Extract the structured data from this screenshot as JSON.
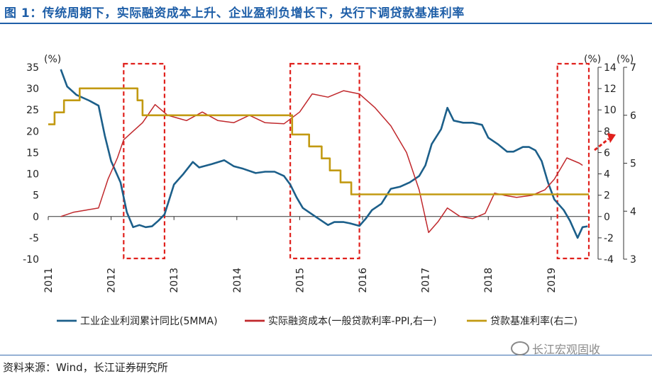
{
  "title": "图 1：传统周期下，实际融资成本上升、企业盈利负增长下，央行下调贷款基准利率",
  "source": "资料来源：Wind，长江证券研究所",
  "watermark": "长江宏观固收",
  "colors": {
    "profit": "#1c5f8a",
    "cost": "#c0282c",
    "rate": "#c29a12",
    "highlight": "#e0201c",
    "accent": "#1f5fa8"
  },
  "chart_data": {
    "type": "line",
    "unit_left": "(%)",
    "unit_right1": "(%)",
    "unit_right2": "(%)",
    "xlim": [
      2011,
      2019.6
    ],
    "x_ticks": [
      "2011",
      "2012",
      "2013",
      "2014",
      "2015",
      "2016",
      "2017",
      "2018",
      "2019"
    ],
    "y_left": {
      "ylim": [
        -10,
        35
      ],
      "ticks": [
        "35",
        "30",
        "25",
        "20",
        "15",
        "10",
        "5",
        "0",
        "-5",
        "-10"
      ]
    },
    "y_right1": {
      "ylim": [
        -4,
        14
      ],
      "ticks": [
        "14",
        "12",
        "10",
        "8",
        "6",
        "4",
        "2",
        "0",
        "-2",
        "-4"
      ]
    },
    "y_right2": {
      "ylim": [
        3,
        7
      ],
      "ticks": [
        "7",
        "6",
        "5",
        "4",
        "3"
      ]
    },
    "series": [
      {
        "name": "工业企业利润累计同比(5MMA)",
        "axis": "left",
        "points": [
          [
            2011.2,
            34.5
          ],
          [
            2011.3,
            30.5
          ],
          [
            2011.45,
            28.5
          ],
          [
            2011.65,
            27.2
          ],
          [
            2011.8,
            26
          ],
          [
            2011.9,
            19
          ],
          [
            2012.0,
            13
          ],
          [
            2012.15,
            8
          ],
          [
            2012.25,
            1
          ],
          [
            2012.35,
            -2.5
          ],
          [
            2012.45,
            -2
          ],
          [
            2012.55,
            -2.5
          ],
          [
            2012.65,
            -2.3
          ],
          [
            2012.75,
            -1
          ],
          [
            2012.85,
            0.5
          ],
          [
            2013.0,
            7.5
          ],
          [
            2013.15,
            10
          ],
          [
            2013.3,
            12.8
          ],
          [
            2013.4,
            11.5
          ],
          [
            2013.6,
            12.3
          ],
          [
            2013.8,
            13.2
          ],
          [
            2013.95,
            11.8
          ],
          [
            2014.1,
            11.2
          ],
          [
            2014.3,
            10.2
          ],
          [
            2014.45,
            10.5
          ],
          [
            2014.6,
            10.5
          ],
          [
            2014.75,
            9.5
          ],
          [
            2014.85,
            7.5
          ],
          [
            2014.95,
            4.5
          ],
          [
            2015.05,
            2
          ],
          [
            2015.2,
            0.5
          ],
          [
            2015.35,
            -1
          ],
          [
            2015.45,
            -2
          ],
          [
            2015.55,
            -1.3
          ],
          [
            2015.7,
            -1.3
          ],
          [
            2015.8,
            -1.6
          ],
          [
            2015.95,
            -2.2
          ],
          [
            2016.05,
            -0.5
          ],
          [
            2016.15,
            1.5
          ],
          [
            2016.3,
            3
          ],
          [
            2016.45,
            6.5
          ],
          [
            2016.6,
            7
          ],
          [
            2016.75,
            8
          ],
          [
            2016.9,
            9.5
          ],
          [
            2017.0,
            12
          ],
          [
            2017.1,
            17
          ],
          [
            2017.25,
            20.5
          ],
          [
            2017.35,
            25.5
          ],
          [
            2017.45,
            22.5
          ],
          [
            2017.6,
            22
          ],
          [
            2017.75,
            22
          ],
          [
            2017.9,
            21.5
          ],
          [
            2018.0,
            18.5
          ],
          [
            2018.15,
            17
          ],
          [
            2018.3,
            15.2
          ],
          [
            2018.4,
            15.2
          ],
          [
            2018.55,
            16.3
          ],
          [
            2018.65,
            16.3
          ],
          [
            2018.75,
            15.5
          ],
          [
            2018.85,
            13
          ],
          [
            2018.95,
            8
          ],
          [
            2019.05,
            4
          ],
          [
            2019.2,
            1.5
          ],
          [
            2019.3,
            -1
          ],
          [
            2019.42,
            -5
          ],
          [
            2019.5,
            -2.5
          ],
          [
            2019.58,
            -2.3
          ]
        ]
      },
      {
        "name": "实际融资成本(一般贷款利率-PPI,右一)",
        "axis": "right1",
        "points": [
          [
            2011.2,
            0
          ],
          [
            2011.4,
            0.4
          ],
          [
            2011.6,
            0.6
          ],
          [
            2011.8,
            0.8
          ],
          [
            2011.95,
            3.5
          ],
          [
            2012.1,
            5.5
          ],
          [
            2012.2,
            7.2
          ],
          [
            2012.35,
            8
          ],
          [
            2012.5,
            8.8
          ],
          [
            2012.7,
            10.5
          ],
          [
            2012.9,
            9.5
          ],
          [
            2013.2,
            9
          ],
          [
            2013.45,
            9.8
          ],
          [
            2013.7,
            9
          ],
          [
            2013.95,
            8.8
          ],
          [
            2014.2,
            9.5
          ],
          [
            2014.45,
            8.8
          ],
          [
            2014.75,
            8.7
          ],
          [
            2015.0,
            9.8
          ],
          [
            2015.2,
            11.5
          ],
          [
            2015.45,
            11.2
          ],
          [
            2015.7,
            11.8
          ],
          [
            2015.95,
            11.5
          ],
          [
            2016.2,
            10.2
          ],
          [
            2016.45,
            8.5
          ],
          [
            2016.7,
            6
          ],
          [
            2016.9,
            2.5
          ],
          [
            2017.05,
            -1.5
          ],
          [
            2017.2,
            -0.5
          ],
          [
            2017.35,
            0.8
          ],
          [
            2017.55,
            0
          ],
          [
            2017.75,
            -0.2
          ],
          [
            2017.95,
            0.3
          ],
          [
            2018.1,
            2.2
          ],
          [
            2018.25,
            2
          ],
          [
            2018.45,
            1.8
          ],
          [
            2018.7,
            2
          ],
          [
            2018.9,
            2.5
          ],
          [
            2019.05,
            3.5
          ],
          [
            2019.25,
            5.5
          ],
          [
            2019.45,
            5
          ],
          [
            2019.5,
            4.8
          ]
        ]
      },
      {
        "name": "贷款基准利率(右二)",
        "axis": "right2",
        "points": [
          [
            2011.0,
            5.81
          ],
          [
            2011.1,
            5.81
          ],
          [
            2011.1,
            6.06
          ],
          [
            2011.25,
            6.06
          ],
          [
            2011.25,
            6.31
          ],
          [
            2011.5,
            6.31
          ],
          [
            2011.5,
            6.56
          ],
          [
            2012.42,
            6.56
          ],
          [
            2012.42,
            6.31
          ],
          [
            2012.5,
            6.31
          ],
          [
            2012.5,
            6.0
          ],
          [
            2014.88,
            6.0
          ],
          [
            2014.88,
            5.6
          ],
          [
            2015.15,
            5.6
          ],
          [
            2015.15,
            5.35
          ],
          [
            2015.35,
            5.35
          ],
          [
            2015.35,
            5.1
          ],
          [
            2015.48,
            5.1
          ],
          [
            2015.48,
            4.85
          ],
          [
            2015.65,
            4.85
          ],
          [
            2015.65,
            4.6
          ],
          [
            2015.82,
            4.6
          ],
          [
            2015.82,
            4.35
          ],
          [
            2019.6,
            4.35
          ]
        ]
      }
    ],
    "highlight_periods": [
      [
        2012.2,
        2012.85
      ],
      [
        2014.85,
        2015.95
      ],
      [
        2019.1,
        2019.6
      ]
    ]
  }
}
